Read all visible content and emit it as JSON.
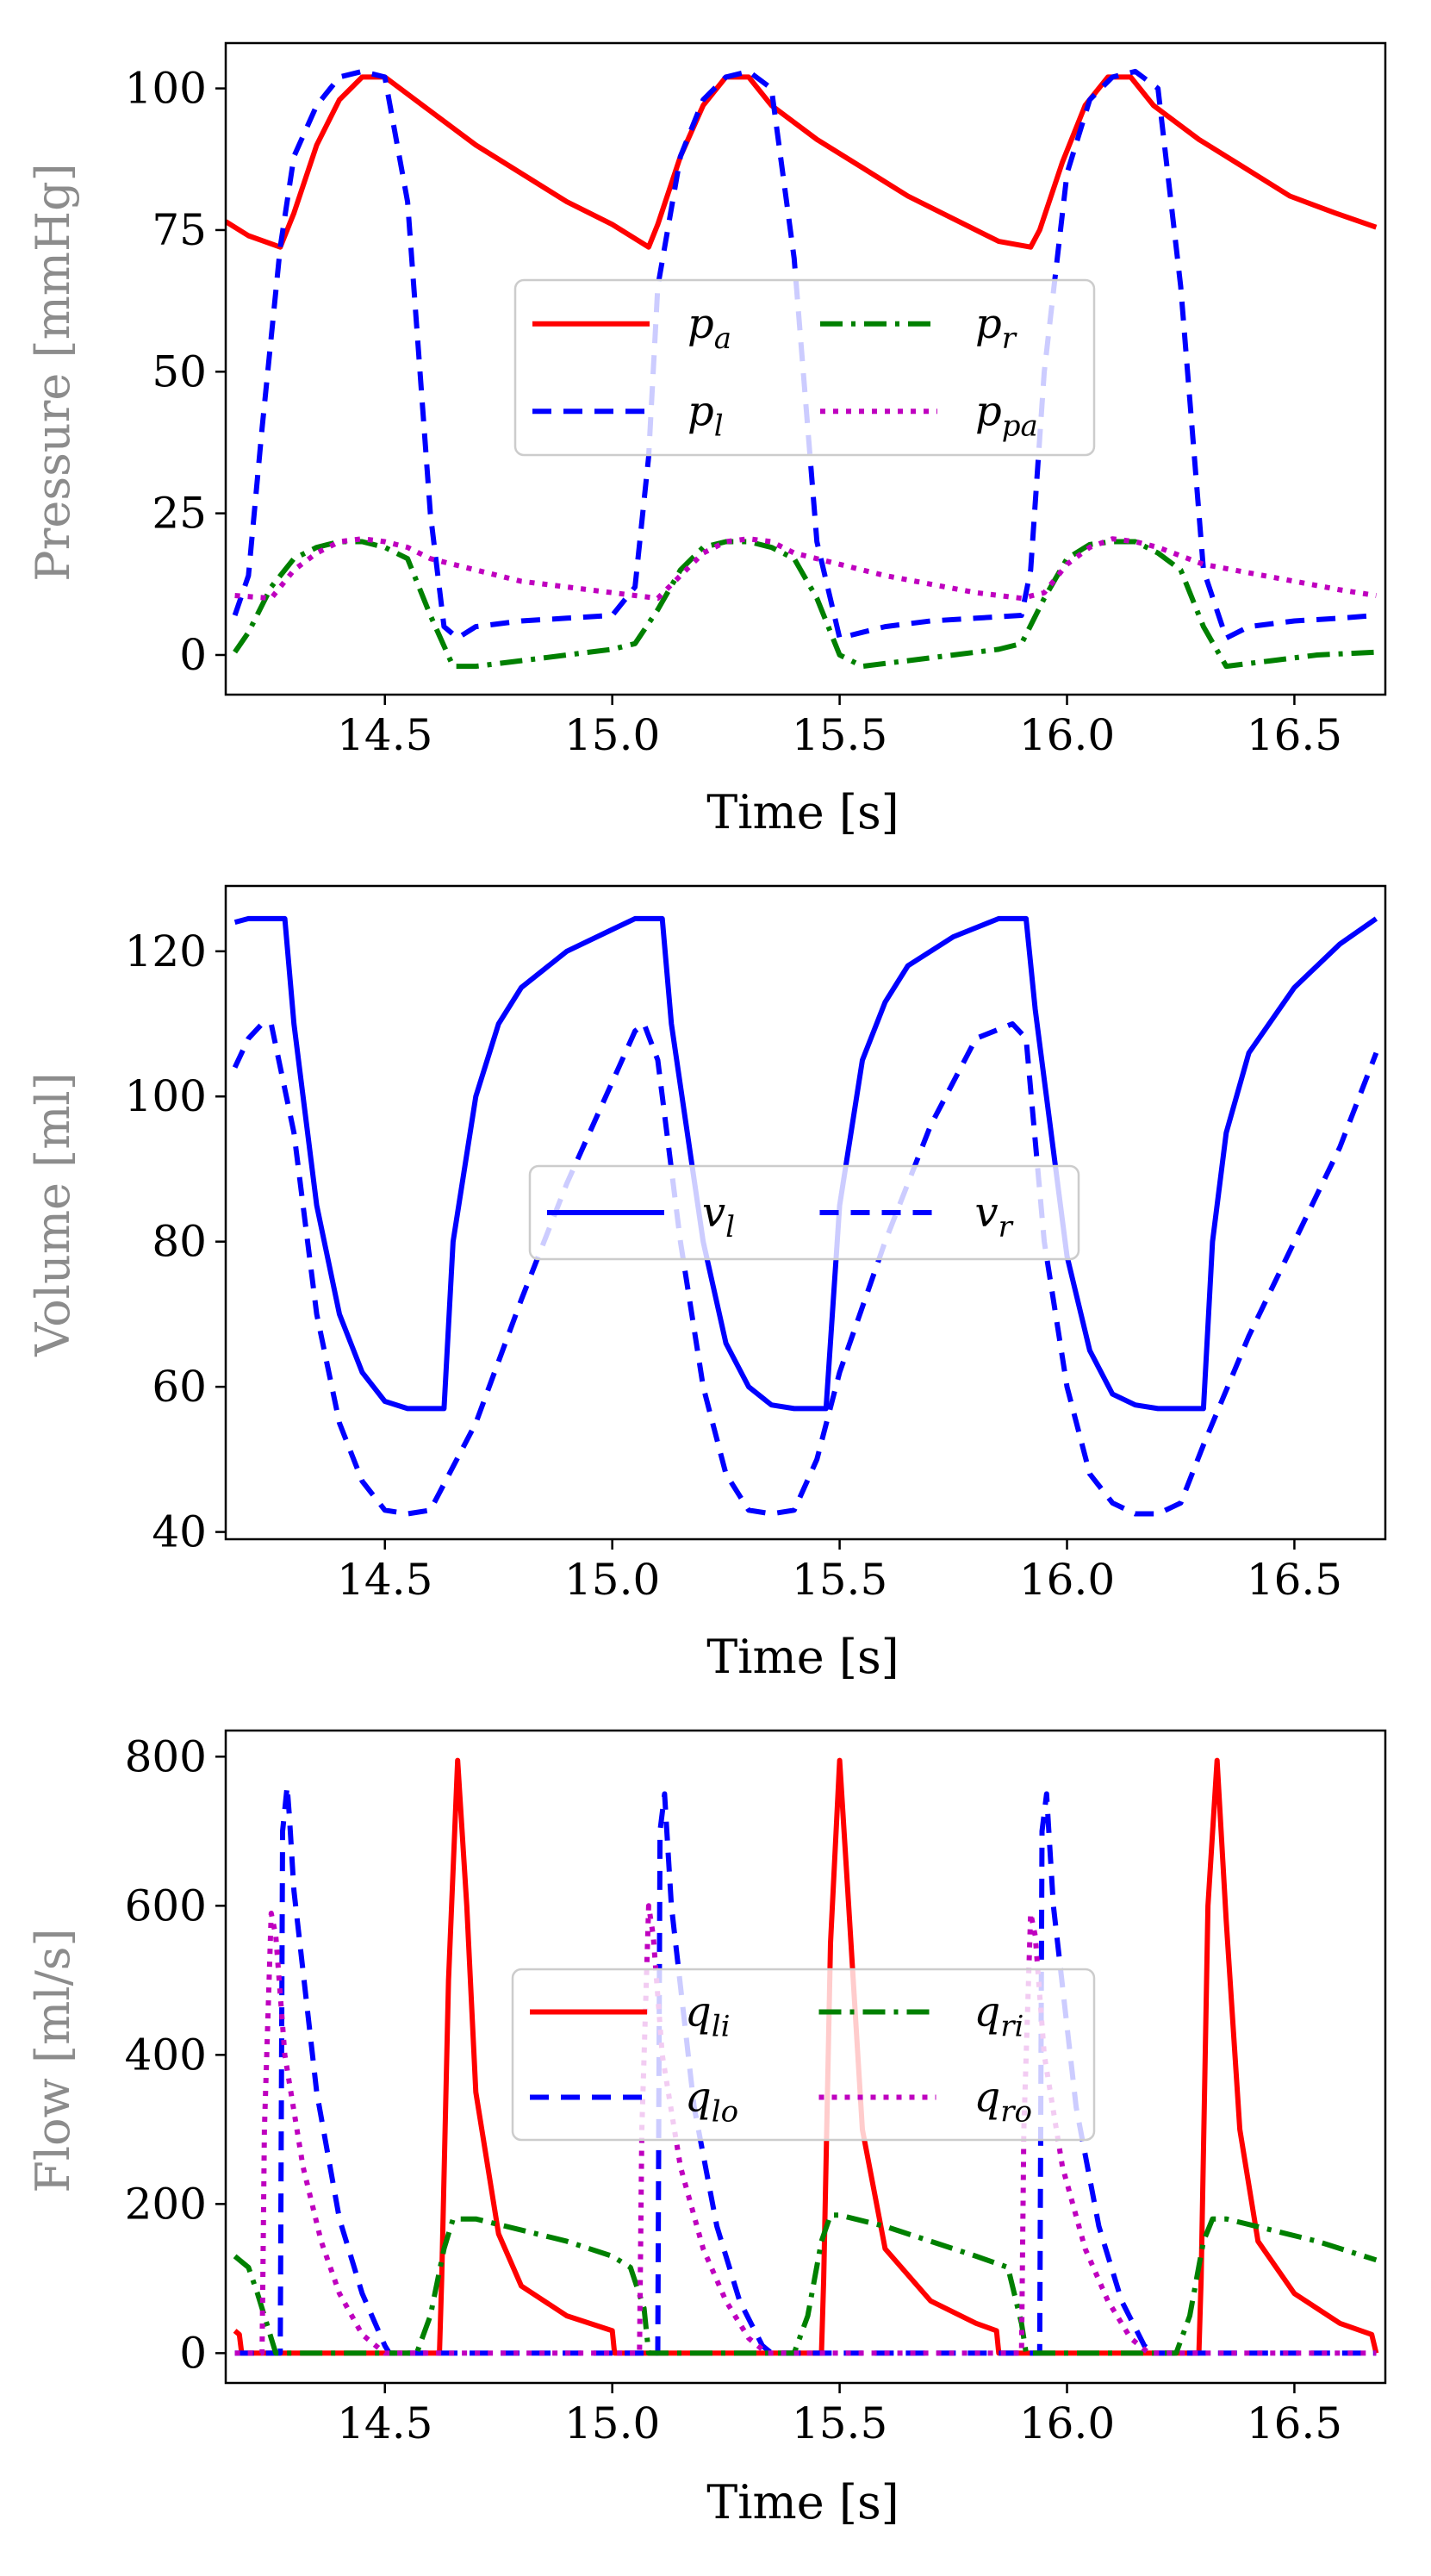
{
  "chart_data": [
    {
      "type": "line",
      "xlabel": "Time [s]",
      "ylabel": "Pressure [mmHg]",
      "xlim": [
        14.15,
        16.7
      ],
      "ylim": [
        -7,
        108
      ],
      "xticks": [
        14.5,
        15.0,
        15.5,
        16.0,
        16.5
      ],
      "xtick_labels": [
        "14.5",
        "15.0",
        "15.5",
        "16.0",
        "16.5"
      ],
      "yticks": [
        0,
        25,
        50,
        75,
        100
      ],
      "ytick_labels": [
        "0",
        "25",
        "50",
        "75",
        "100"
      ],
      "legend": {
        "placement": "center",
        "ncol": 2
      },
      "series": [
        {
          "name": "pa",
          "label_base": "p",
          "label_sub": "a",
          "color": "#ff0000",
          "dash": "solid",
          "x": [
            14.15,
            14.2,
            14.27,
            14.3,
            14.35,
            14.4,
            14.45,
            14.5,
            14.6,
            14.7,
            14.8,
            14.9,
            15.0,
            15.08,
            15.1,
            15.15,
            15.2,
            15.25,
            15.3,
            15.35,
            15.45,
            15.55,
            15.65,
            15.75,
            15.85,
            15.92,
            15.94,
            15.99,
            16.04,
            16.09,
            16.14,
            16.19,
            16.29,
            16.39,
            16.49,
            16.59,
            16.68
          ],
          "y": [
            76.5,
            74,
            72,
            78,
            90,
            98,
            102,
            102,
            96,
            90,
            85,
            80,
            76,
            72,
            76,
            88,
            97,
            102,
            102,
            97,
            91,
            86,
            81,
            77,
            73,
            72,
            75,
            87,
            97,
            102,
            102,
            97,
            91,
            86,
            81,
            78,
            75.5
          ]
        },
        {
          "name": "pl",
          "label_base": "p",
          "label_sub": "l",
          "color": "#0000ff",
          "dash": "22,14",
          "x": [
            14.17,
            14.2,
            14.23,
            14.27,
            14.3,
            14.35,
            14.4,
            14.45,
            14.5,
            14.55,
            14.6,
            14.63,
            14.66,
            14.7,
            14.8,
            14.9,
            15.0,
            15.05,
            15.08,
            15.1,
            15.15,
            15.2,
            15.25,
            15.3,
            15.35,
            15.4,
            15.45,
            15.5,
            15.55,
            15.6,
            15.7,
            15.8,
            15.9,
            15.92,
            15.95,
            16.0,
            16.05,
            16.1,
            16.15,
            16.2,
            16.25,
            16.3,
            16.35,
            16.4,
            16.5,
            16.6,
            16.68
          ],
          "y": [
            7,
            14,
            40,
            72,
            88,
            97,
            102,
            103,
            102,
            80,
            25,
            5,
            3,
            5,
            6,
            6.5,
            7,
            12,
            35,
            65,
            88,
            98,
            102,
            103,
            100,
            70,
            20,
            3,
            4,
            5,
            6,
            6.5,
            7,
            15,
            50,
            85,
            98,
            102,
            103,
            100,
            65,
            15,
            3,
            5,
            6,
            6.5,
            7
          ]
        },
        {
          "name": "pr",
          "label_base": "p",
          "label_sub": "r",
          "color": "#008000",
          "dash": "26,10,5,10",
          "x": [
            14.17,
            14.2,
            14.25,
            14.3,
            14.35,
            14.4,
            14.45,
            14.5,
            14.55,
            14.6,
            14.65,
            14.7,
            14.8,
            14.9,
            15.0,
            15.05,
            15.1,
            15.15,
            15.2,
            15.25,
            15.3,
            15.35,
            15.4,
            15.45,
            15.5,
            15.55,
            15.65,
            15.75,
            15.85,
            15.9,
            15.95,
            16.0,
            16.05,
            16.1,
            16.15,
            16.2,
            16.25,
            16.3,
            16.35,
            16.45,
            16.55,
            16.68
          ],
          "y": [
            0.5,
            4,
            12,
            17,
            19,
            20,
            20,
            19,
            17,
            7,
            -2,
            -2,
            -1,
            0,
            1,
            2,
            8,
            15,
            19,
            20,
            20,
            19,
            17,
            10,
            0,
            -2,
            -1,
            0,
            1,
            2,
            10,
            17,
            19.5,
            20,
            20,
            18,
            15,
            5,
            -2,
            -1,
            0,
            0.5
          ]
        },
        {
          "name": "ppa",
          "label_base": "p",
          "label_sub": "pa",
          "color": "#bf00bf",
          "dash": "6,9",
          "x": [
            14.17,
            14.25,
            14.3,
            14.35,
            14.4,
            14.45,
            14.5,
            14.55,
            14.6,
            14.7,
            14.8,
            14.9,
            15.0,
            15.05,
            15.1,
            15.15,
            15.2,
            15.25,
            15.3,
            15.35,
            15.4,
            15.5,
            15.6,
            15.7,
            15.8,
            15.9,
            15.95,
            16.0,
            16.05,
            16.1,
            16.15,
            16.2,
            16.25,
            16.3,
            16.4,
            16.5,
            16.6,
            16.68
          ],
          "y": [
            10.5,
            10,
            15,
            18,
            20,
            20.5,
            20,
            19,
            17,
            15,
            13,
            12,
            11,
            10.5,
            10,
            14,
            18,
            20,
            20.5,
            20,
            18,
            16,
            14,
            12.5,
            11,
            10,
            11,
            16,
            19,
            20.5,
            20,
            19,
            17.5,
            16,
            14.5,
            13,
            11.5,
            10.5
          ]
        }
      ]
    },
    {
      "type": "line",
      "xlabel": "Time [s]",
      "ylabel": "Volume [ml]",
      "xlim": [
        14.15,
        16.7
      ],
      "ylim": [
        39,
        129
      ],
      "xticks": [
        14.5,
        15.0,
        15.5,
        16.0,
        16.5
      ],
      "xtick_labels": [
        "14.5",
        "15.0",
        "15.5",
        "16.0",
        "16.5"
      ],
      "yticks": [
        40,
        60,
        80,
        100,
        120
      ],
      "ytick_labels": [
        "40",
        "60",
        "80",
        "100",
        "120"
      ],
      "legend": {
        "placement": "center",
        "ncol": 2
      },
      "series": [
        {
          "name": "vl",
          "label_base": "v",
          "label_sub": "l",
          "color": "#0000ff",
          "dash": "solid",
          "x": [
            14.17,
            14.2,
            14.28,
            14.3,
            14.35,
            14.4,
            14.45,
            14.5,
            14.55,
            14.6,
            14.63,
            14.65,
            14.7,
            14.75,
            14.8,
            14.9,
            15.0,
            15.05,
            15.11,
            15.13,
            15.2,
            15.25,
            15.3,
            15.35,
            15.4,
            15.45,
            15.47,
            15.5,
            15.55,
            15.6,
            15.65,
            15.75,
            15.85,
            15.91,
            15.93,
            16.0,
            16.05,
            16.1,
            16.15,
            16.2,
            16.25,
            16.3,
            16.32,
            16.35,
            16.4,
            16.5,
            16.6,
            16.68
          ],
          "y": [
            124,
            124.5,
            124.5,
            110,
            85,
            70,
            62,
            58,
            57,
            57,
            57,
            80,
            100,
            110,
            115,
            120,
            123,
            124.5,
            124.5,
            110,
            80,
            66,
            60,
            57.5,
            57,
            57,
            57,
            85,
            105,
            113,
            118,
            122,
            124.5,
            124.5,
            112,
            78,
            65,
            59,
            57.5,
            57,
            57,
            57,
            80,
            95,
            106,
            115,
            121,
            124.5
          ]
        },
        {
          "name": "vr",
          "label_base": "v",
          "label_sub": "r",
          "color": "#0000ff",
          "dash": "22,14",
          "x": [
            14.17,
            14.2,
            14.23,
            14.25,
            14.3,
            14.35,
            14.4,
            14.45,
            14.5,
            14.55,
            14.6,
            14.7,
            14.8,
            14.9,
            15.0,
            15.05,
            15.07,
            15.1,
            15.15,
            15.2,
            15.25,
            15.3,
            15.35,
            15.4,
            15.45,
            15.5,
            15.6,
            15.7,
            15.8,
            15.88,
            15.91,
            15.95,
            16.0,
            16.05,
            16.1,
            16.15,
            16.2,
            16.25,
            16.3,
            16.4,
            16.5,
            16.6,
            16.68
          ],
          "y": [
            104,
            108,
            110,
            110,
            95,
            70,
            55,
            47,
            43,
            42.5,
            43,
            55,
            72,
            88,
            102,
            109,
            110,
            105,
            80,
            60,
            48,
            43,
            42.5,
            43,
            50,
            62,
            80,
            96,
            108,
            110,
            108,
            80,
            60,
            48,
            44,
            42.5,
            42.5,
            44,
            52,
            67,
            80,
            93,
            106
          ]
        }
      ]
    },
    {
      "type": "line",
      "xlabel": "Time [s]",
      "ylabel": "Flow [ml/s]",
      "xlim": [
        14.15,
        16.7
      ],
      "ylim": [
        -40,
        835
      ],
      "xticks": [
        14.5,
        15.0,
        15.5,
        16.0,
        16.5
      ],
      "xtick_labels": [
        "14.5",
        "15.0",
        "15.5",
        "16.0",
        "16.5"
      ],
      "yticks": [
        0,
        200,
        400,
        600,
        800
      ],
      "ytick_labels": [
        "0",
        "200",
        "400",
        "600",
        "800"
      ],
      "legend": {
        "placement": "center",
        "ncol": 2
      },
      "series": [
        {
          "name": "qli",
          "label_base": "q",
          "label_sub": "li",
          "color": "#ff0000",
          "dash": "solid",
          "x": [
            14.17,
            14.18,
            14.185,
            14.62,
            14.625,
            14.64,
            14.66,
            14.68,
            14.7,
            14.75,
            14.8,
            14.9,
            15.0,
            15.005,
            15.01,
            15.46,
            15.465,
            15.48,
            15.5,
            15.52,
            15.55,
            15.6,
            15.7,
            15.8,
            15.845,
            15.85,
            16.29,
            16.295,
            16.31,
            16.33,
            16.35,
            16.38,
            16.42,
            16.5,
            16.6,
            16.67,
            16.68
          ],
          "y": [
            30,
            25,
            0,
            0,
            100,
            500,
            795,
            600,
            350,
            160,
            90,
            50,
            30,
            0,
            0,
            0,
            100,
            550,
            795,
            600,
            300,
            140,
            70,
            40,
            30,
            0,
            0,
            100,
            600,
            795,
            580,
            300,
            150,
            80,
            40,
            25,
            0
          ]
        },
        {
          "name": "qlo",
          "label_base": "q",
          "label_sub": "lo",
          "color": "#0000ff",
          "dash": "22,14",
          "x": [
            14.17,
            14.27,
            14.275,
            14.285,
            14.29,
            14.3,
            14.35,
            14.4,
            14.45,
            14.5,
            14.51,
            15.1,
            15.105,
            15.115,
            15.12,
            15.13,
            15.18,
            15.23,
            15.28,
            15.33,
            15.35,
            15.94,
            15.945,
            15.955,
            15.96,
            15.97,
            16.02,
            16.07,
            16.12,
            16.17,
            16.19,
            16.68
          ],
          "y": [
            0,
            0,
            700,
            760,
            720,
            620,
            350,
            180,
            80,
            10,
            0,
            0,
            700,
            750,
            700,
            600,
            330,
            170,
            70,
            10,
            0,
            0,
            700,
            750,
            700,
            600,
            330,
            170,
            70,
            10,
            0,
            0
          ]
        },
        {
          "name": "qri",
          "label_base": "q",
          "label_sub": "ri",
          "color": "#008000",
          "dash": "26,10,5,10",
          "x": [
            14.17,
            14.2,
            14.22,
            14.25,
            14.26,
            14.57,
            14.6,
            14.63,
            14.65,
            14.7,
            14.8,
            14.9,
            15.0,
            15.04,
            15.07,
            15.08,
            15.4,
            15.43,
            15.46,
            15.48,
            15.5,
            15.6,
            15.7,
            15.8,
            15.87,
            15.9,
            15.91,
            16.24,
            16.27,
            16.3,
            16.32,
            16.35,
            16.45,
            16.55,
            16.68
          ],
          "y": [
            130,
            115,
            80,
            20,
            0,
            0,
            50,
            140,
            180,
            180,
            165,
            150,
            130,
            115,
            60,
            0,
            0,
            50,
            150,
            185,
            185,
            170,
            150,
            130,
            115,
            40,
            0,
            0,
            50,
            150,
            180,
            180,
            165,
            150,
            125
          ]
        },
        {
          "name": "qro",
          "label_base": "q",
          "label_sub": "ro",
          "color": "#bf00bf",
          "dash": "6,9",
          "x": [
            14.17,
            14.23,
            14.235,
            14.25,
            14.26,
            14.28,
            14.32,
            14.36,
            14.4,
            14.45,
            14.5,
            14.51,
            15.06,
            15.065,
            15.08,
            15.09,
            15.11,
            15.15,
            15.2,
            15.25,
            15.3,
            15.34,
            15.35,
            15.9,
            15.905,
            15.92,
            15.93,
            15.95,
            15.99,
            16.04,
            16.09,
            16.14,
            16.18,
            16.19,
            16.68
          ],
          "y": [
            0,
            0,
            300,
            590,
            560,
            400,
            250,
            150,
            80,
            25,
            0,
            0,
            0,
            300,
            600,
            560,
            400,
            250,
            140,
            70,
            20,
            0,
            0,
            0,
            300,
            590,
            560,
            400,
            250,
            140,
            70,
            20,
            0,
            0,
            0
          ]
        }
      ]
    }
  ]
}
